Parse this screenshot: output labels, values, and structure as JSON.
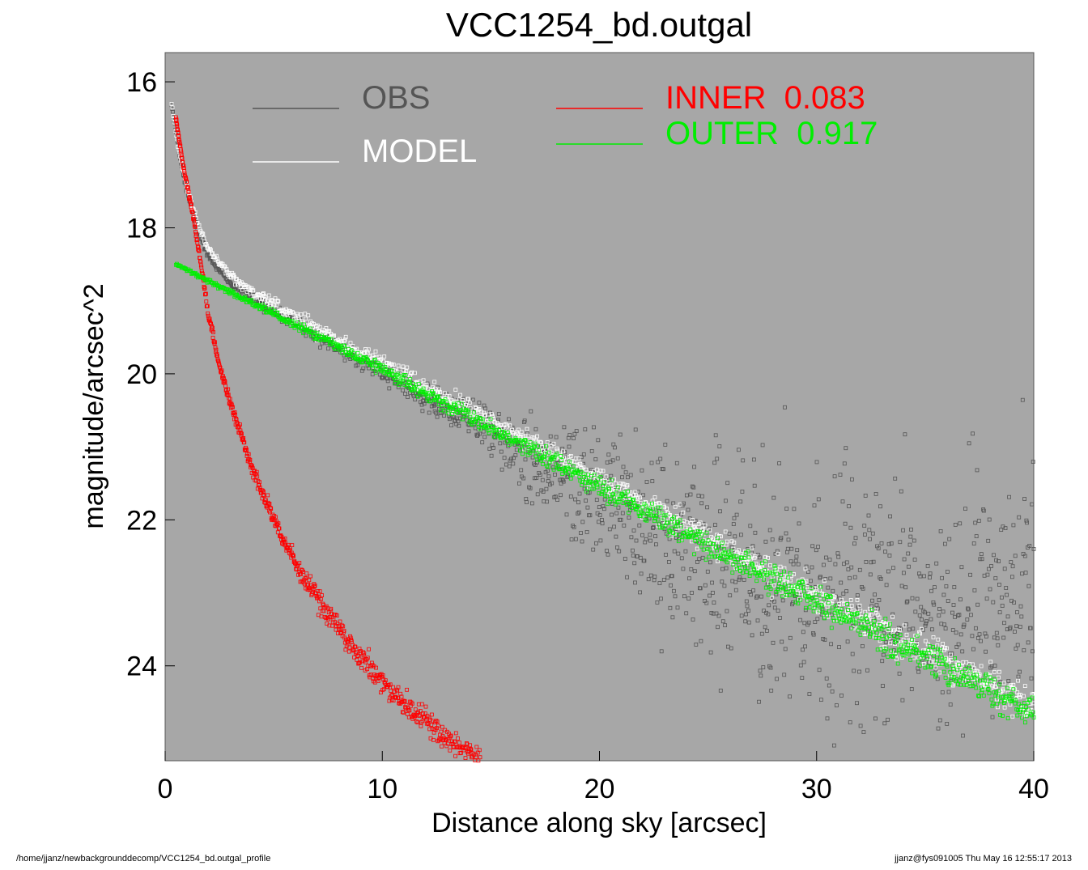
{
  "chart_data": {
    "type": "scatter",
    "title": "VCC1254_bd.outgal",
    "xlabel": "Distance along sky [arcsec]",
    "ylabel": "magnitude/arcsec^2",
    "xlim": [
      0,
      40
    ],
    "ylim": [
      25.3,
      15.6
    ],
    "y_inverted": true,
    "x_ticks": [
      0,
      10,
      20,
      30,
      40
    ],
    "y_ticks": [
      16,
      18,
      20,
      22,
      24
    ],
    "background_color": "#a7a7a7",
    "grid": false,
    "legend": {
      "placement": "top",
      "entries": [
        {
          "label": "OBS",
          "color": "#555555"
        },
        {
          "label": "MODEL",
          "color": "#ffffff"
        },
        {
          "label": "INNER  0.083",
          "color": "#ff0000"
        },
        {
          "label": "OUTER  0.917",
          "color": "#00ee00"
        }
      ]
    },
    "series": [
      {
        "name": "OBS",
        "color": "#555555",
        "points": [
          [
            0.3,
            16.3
          ],
          [
            0.6,
            16.9
          ],
          [
            1.0,
            17.5
          ],
          [
            1.5,
            18.0
          ],
          [
            2.0,
            18.4
          ],
          [
            3.0,
            18.75
          ],
          [
            4.0,
            18.95
          ],
          [
            5.0,
            19.15
          ],
          [
            6.0,
            19.3
          ],
          [
            8.0,
            19.65
          ],
          [
            10.0,
            19.95
          ],
          [
            12.0,
            20.3
          ],
          [
            14.0,
            20.6
          ],
          [
            16.0,
            21.0
          ],
          [
            18.0,
            21.4
          ],
          [
            20.0,
            21.7
          ],
          [
            22.0,
            22.1
          ],
          [
            24.0,
            22.4
          ],
          [
            26.0,
            22.7
          ],
          [
            28.0,
            22.9
          ],
          [
            30.0,
            23.1
          ],
          [
            32.0,
            23.3
          ],
          [
            34.0,
            23.1
          ],
          [
            36.0,
            23.3
          ],
          [
            38.0,
            23.0
          ],
          [
            40.0,
            22.9
          ]
        ],
        "scatter_sigma": [
          0.02,
          0.03,
          0.03,
          0.03,
          0.03,
          0.04,
          0.05,
          0.05,
          0.06,
          0.08,
          0.1,
          0.14,
          0.2,
          0.3,
          0.45,
          0.6,
          0.8,
          0.95,
          1.05,
          1.1,
          1.15,
          1.15,
          1.2,
          1.2,
          1.2,
          1.2
        ]
      },
      {
        "name": "MODEL",
        "color": "#ffffff",
        "points": [
          [
            0.3,
            16.3
          ],
          [
            0.6,
            16.9
          ],
          [
            1.0,
            17.45
          ],
          [
            1.5,
            17.95
          ],
          [
            2.0,
            18.3
          ],
          [
            3.0,
            18.65
          ],
          [
            4.0,
            18.88
          ],
          [
            5.0,
            19.05
          ],
          [
            6.0,
            19.22
          ],
          [
            8.0,
            19.55
          ],
          [
            10.0,
            19.87
          ],
          [
            15.0,
            20.65
          ],
          [
            20.0,
            21.45
          ],
          [
            25.0,
            22.25
          ],
          [
            30.0,
            23.05
          ],
          [
            35.0,
            23.8
          ],
          [
            40.0,
            24.55
          ]
        ],
        "scatter_sigma": [
          0.02,
          0.02,
          0.03,
          0.03,
          0.04,
          0.05,
          0.06,
          0.06,
          0.07,
          0.08,
          0.09,
          0.1,
          0.12,
          0.14,
          0.16,
          0.17,
          0.18
        ]
      },
      {
        "name": "INNER  0.083",
        "color": "#ff0000",
        "points": [
          [
            0.5,
            16.5
          ],
          [
            0.8,
            17.1
          ],
          [
            1.2,
            17.7
          ],
          [
            1.6,
            18.4
          ],
          [
            2.0,
            19.2
          ],
          [
            2.5,
            19.9
          ],
          [
            3.0,
            20.4
          ],
          [
            4.0,
            21.3
          ],
          [
            5.0,
            22.0
          ],
          [
            6.0,
            22.6
          ],
          [
            7.0,
            23.1
          ],
          [
            8.0,
            23.5
          ],
          [
            9.0,
            23.9
          ],
          [
            10.0,
            24.2
          ],
          [
            11.0,
            24.5
          ],
          [
            12.0,
            24.75
          ],
          [
            13.0,
            25.0
          ],
          [
            14.0,
            25.2
          ],
          [
            14.5,
            25.3
          ]
        ],
        "scatter_sigma": [
          0.02,
          0.02,
          0.03,
          0.03,
          0.04,
          0.05,
          0.06,
          0.07,
          0.08,
          0.09,
          0.1,
          0.11,
          0.12,
          0.12,
          0.12,
          0.12,
          0.12,
          0.12,
          0.12
        ]
      },
      {
        "name": "OUTER  0.917",
        "color": "#00ee00",
        "points": [
          [
            0.5,
            18.5
          ],
          [
            2.0,
            18.73
          ],
          [
            4.0,
            19.03
          ],
          [
            6.0,
            19.33
          ],
          [
            8.0,
            19.63
          ],
          [
            10.0,
            19.95
          ],
          [
            15.0,
            20.75
          ],
          [
            20.0,
            21.55
          ],
          [
            25.0,
            22.35
          ],
          [
            30.0,
            23.12
          ],
          [
            35.0,
            23.9
          ],
          [
            40.0,
            24.65
          ]
        ],
        "scatter_sigma": [
          0.01,
          0.02,
          0.03,
          0.04,
          0.05,
          0.06,
          0.08,
          0.1,
          0.12,
          0.14,
          0.16,
          0.18
        ]
      }
    ]
  },
  "footer": {
    "left": "/home/jjanz/newbackgrounddecomp/VCC1254_bd.outgal_profile",
    "right": "jjanz@fys091005  Thu May 16 12:55:17 2013"
  }
}
